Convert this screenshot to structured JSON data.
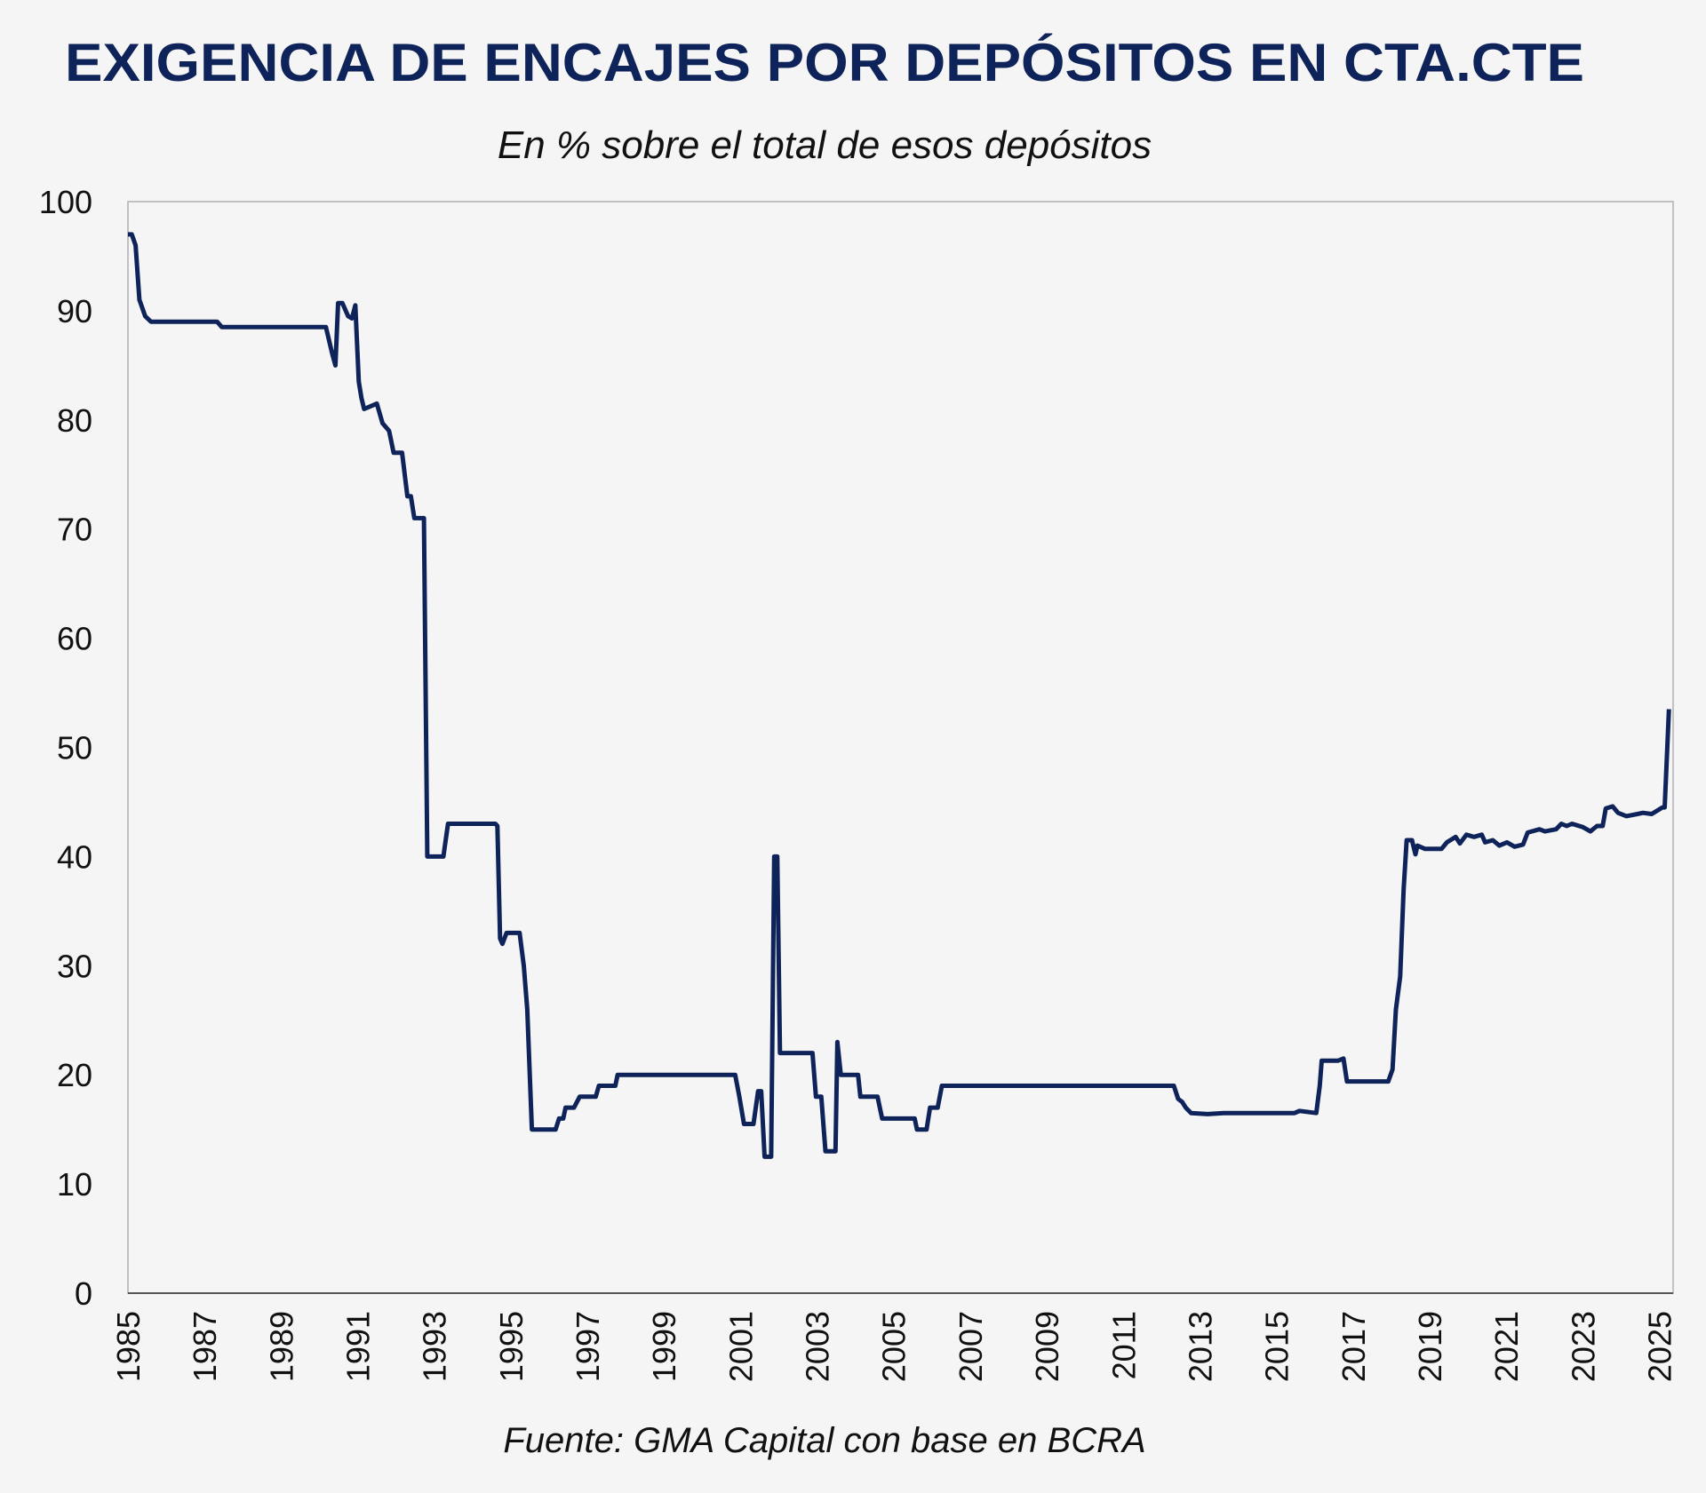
{
  "chart_data": {
    "type": "line",
    "title": "EXIGENCIA DE ENCAJES POR DEPÓSITOS EN CTA.CTE",
    "subtitle": "En % sobre el total de esos depósitos",
    "source": "Fuente: GMA Capital con base en BCRA",
    "xlabel": "",
    "ylabel": "",
    "xlim": [
      1985,
      2025.36
    ],
    "ylim": [
      0,
      100
    ],
    "yticks": [
      "0",
      "10",
      "20",
      "30",
      "40",
      "50",
      "60",
      "70",
      "80",
      "90",
      "100"
    ],
    "xticks": [
      "1985",
      "1987",
      "1989",
      "1991",
      "1993",
      "1995",
      "1997",
      "1999",
      "2001",
      "2003",
      "2005",
      "2007",
      "2009",
      "2011",
      "2013",
      "2015",
      "2017",
      "2019",
      "2021",
      "2023",
      "2025"
    ],
    "grid": false,
    "legend": "none",
    "line_color": "#0e2359",
    "series": [
      {
        "x": [
          1985.0,
          1985.1,
          1985.2,
          1985.3,
          1985.45,
          1985.6,
          1987.33,
          1987.45,
          1990.17,
          1990.34,
          1990.42,
          1990.49,
          1990.6,
          1990.75,
          1990.85,
          1990.94,
          1991.03,
          1991.1,
          1991.17,
          1991.5,
          1991.65,
          1991.82,
          1991.94,
          1992.16,
          1992.3,
          1992.39,
          1992.48,
          1992.73,
          1992.82,
          1993.24,
          1993.36,
          1994.6,
          1994.65,
          1994.72,
          1994.78,
          1994.89,
          1995.23,
          1995.34,
          1995.43,
          1995.55,
          1996.17,
          1996.26,
          1996.37,
          1996.43,
          1996.65,
          1996.8,
          1997.22,
          1997.3,
          1997.73,
          1997.79,
          2000.86,
          2000.97,
          2001.09,
          2001.34,
          2001.46,
          2001.54,
          2001.63,
          2001.8,
          2001.88,
          2001.96,
          2002.03,
          2002.88,
          2002.97,
          2003.11,
          2003.22,
          2003.48,
          2003.53,
          2003.62,
          2004.07,
          2004.13,
          2004.58,
          2004.7,
          2005.55,
          2005.61,
          2005.86,
          2005.95,
          2006.15,
          2006.26,
          2012.32,
          2012.43,
          2012.54,
          2012.63,
          2012.77,
          2013.2,
          2013.62,
          2014.62,
          2015.47,
          2015.6,
          2016.04,
          2016.13,
          2016.18,
          2016.61,
          2016.75,
          2016.84,
          2017.92,
          2018.03,
          2018.12,
          2018.23,
          2018.32,
          2018.4,
          2018.54,
          2018.63,
          2018.68,
          2018.88,
          2019.31,
          2019.45,
          2019.68,
          2019.79,
          2019.96,
          2020.16,
          2020.36,
          2020.45,
          2020.65,
          2020.82,
          2021.02,
          2021.22,
          2021.44,
          2021.56,
          2021.87,
          2022.01,
          2022.3,
          2022.44,
          2022.58,
          2022.72,
          2023.0,
          2023.2,
          2023.37,
          2023.52,
          2023.6,
          2023.78,
          2023.92,
          2024.14,
          2024.43,
          2024.57,
          2024.8,
          2025.08,
          2025.14,
          2025.25
        ],
        "y": [
          97,
          97,
          96,
          91,
          89.5,
          89,
          89,
          88.5,
          88.5,
          86,
          85,
          90.7,
          90.7,
          89.5,
          89.3,
          90.5,
          83.5,
          82,
          81,
          81.5,
          79.7,
          79,
          77,
          77,
          73,
          73,
          71,
          71,
          40,
          40,
          43,
          43,
          42.8,
          32.5,
          32,
          33,
          33,
          30,
          26,
          15,
          15,
          16,
          16,
          17,
          17,
          18,
          18,
          19,
          19,
          20,
          20,
          18,
          15.5,
          15.5,
          18.5,
          18.5,
          12.5,
          12.5,
          40,
          40,
          22,
          22,
          18,
          18,
          13,
          13,
          23,
          20,
          20,
          18,
          18,
          16,
          16,
          15,
          15,
          17,
          17,
          19,
          19,
          17.8,
          17.5,
          17,
          16.5,
          16.4,
          16.5,
          16.5,
          16.5,
          16.7,
          16.5,
          19,
          21.3,
          21.3,
          21.5,
          19.4,
          19.4,
          20.5,
          26,
          29,
          37,
          41.5,
          41.5,
          40.2,
          41,
          40.7,
          40.7,
          41.3,
          41.8,
          41.2,
          42,
          41.8,
          42,
          41.3,
          41.5,
          41,
          41.3,
          40.9,
          41.1,
          42.2,
          42.5,
          42.3,
          42.5,
          43,
          42.8,
          43,
          42.7,
          42.3,
          42.8,
          42.8,
          44.4,
          44.6,
          44,
          43.7,
          43.9,
          44,
          43.9,
          44.5,
          44.5,
          53.5
        ]
      }
    ]
  }
}
